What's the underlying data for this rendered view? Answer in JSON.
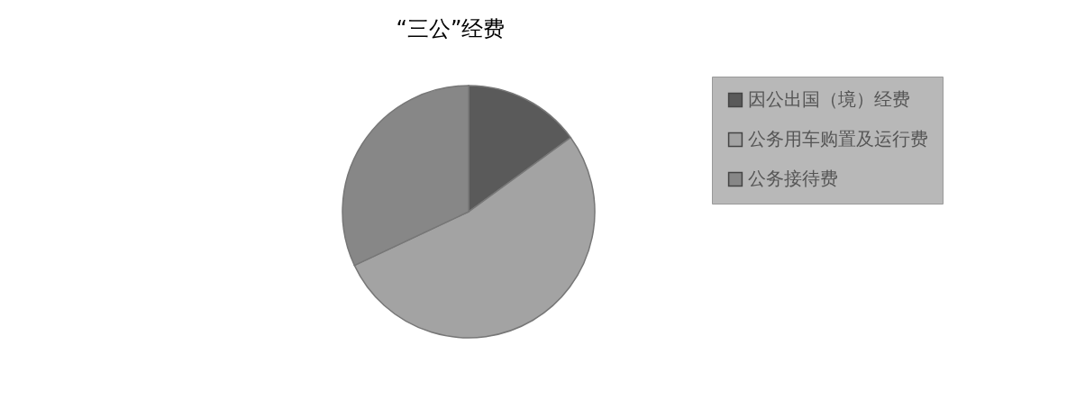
{
  "chart_data": {
    "type": "pie",
    "title": "“三公”经费",
    "categories": [
      "因公出国（境）经费",
      "公务用车购置及运行费",
      "公务接待费"
    ],
    "values": [
      15,
      53,
      32
    ],
    "colors": [
      "#5a5a5a",
      "#a3a3a3",
      "#878787"
    ],
    "legend": "right"
  }
}
